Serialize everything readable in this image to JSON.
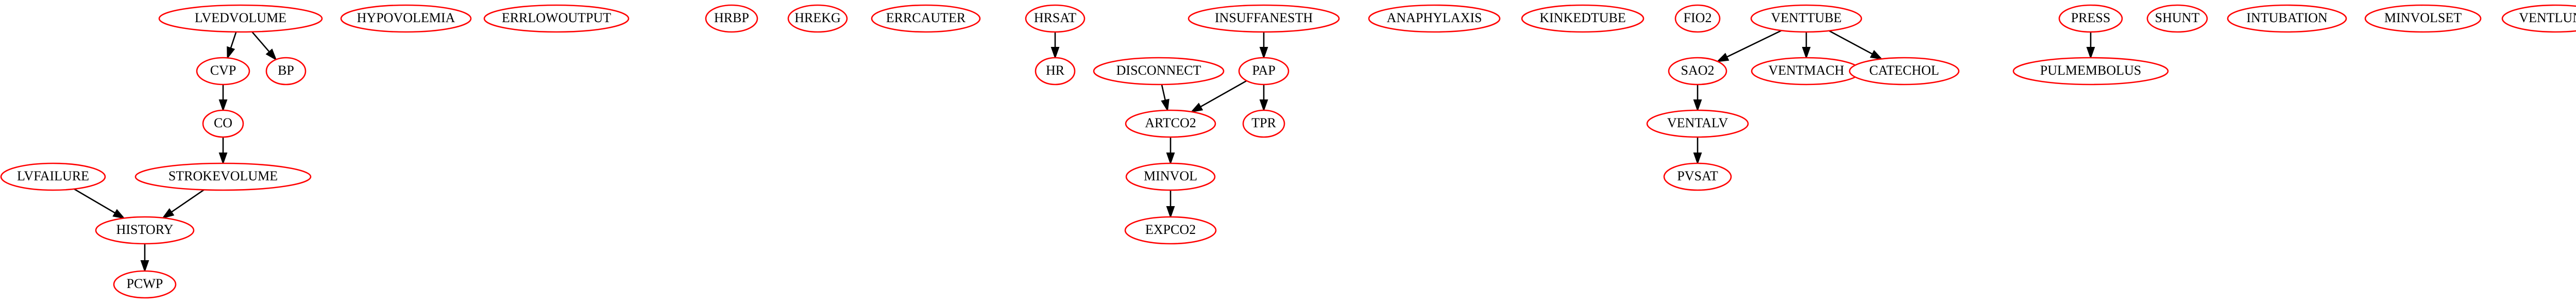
{
  "graph": {
    "node_color": "#ff0000",
    "edge_color": "#000000",
    "nodes": [
      {
        "id": "LVEDVOLUME",
        "label": "LVEDVOLUME"
      },
      {
        "id": "HYPOVOLEMIA",
        "label": "HYPOVOLEMIA"
      },
      {
        "id": "ERRLOWOUTPUT",
        "label": "ERRLOWOUTPUT"
      },
      {
        "id": "HRBP",
        "label": "HRBP"
      },
      {
        "id": "HREKG",
        "label": "HREKG"
      },
      {
        "id": "ERRCAUTER",
        "label": "ERRCAUTER"
      },
      {
        "id": "HRSAT",
        "label": "HRSAT"
      },
      {
        "id": "INSUFFANESTH",
        "label": "INSUFFANESTH"
      },
      {
        "id": "ANAPHYLAXIS",
        "label": "ANAPHYLAXIS"
      },
      {
        "id": "KINKEDTUBE",
        "label": "KINKEDTUBE"
      },
      {
        "id": "FIO2",
        "label": "FIO2"
      },
      {
        "id": "VENTTUBE",
        "label": "VENTTUBE"
      },
      {
        "id": "PRESS",
        "label": "PRESS"
      },
      {
        "id": "SHUNT",
        "label": "SHUNT"
      },
      {
        "id": "INTUBATION",
        "label": "INTUBATION"
      },
      {
        "id": "MINVOLSET",
        "label": "MINVOLSET"
      },
      {
        "id": "VENTLUNG",
        "label": "VENTLUNG"
      },
      {
        "id": "CVP",
        "label": "CVP"
      },
      {
        "id": "BP",
        "label": "BP"
      },
      {
        "id": "HR",
        "label": "HR"
      },
      {
        "id": "DISCONNECT",
        "label": "DISCONNECT"
      },
      {
        "id": "PAP",
        "label": "PAP"
      },
      {
        "id": "SAO2",
        "label": "SAO2"
      },
      {
        "id": "VENTMACH",
        "label": "VENTMACH"
      },
      {
        "id": "CATECHOL",
        "label": "CATECHOL"
      },
      {
        "id": "PULMEMBOLUS",
        "label": "PULMEMBOLUS"
      },
      {
        "id": "CO",
        "label": "CO"
      },
      {
        "id": "ARTCO2",
        "label": "ARTCO2"
      },
      {
        "id": "TPR",
        "label": "TPR"
      },
      {
        "id": "VENTALV",
        "label": "VENTALV"
      },
      {
        "id": "LVFAILURE",
        "label": "LVFAILURE"
      },
      {
        "id": "STROKEVOLUME",
        "label": "STROKEVOLUME"
      },
      {
        "id": "MINVOL",
        "label": "MINVOL"
      },
      {
        "id": "PVSAT",
        "label": "PVSAT"
      },
      {
        "id": "HISTORY",
        "label": "HISTORY"
      },
      {
        "id": "EXPCO2",
        "label": "EXPCO2"
      },
      {
        "id": "PCWP",
        "label": "PCWP"
      }
    ],
    "edges": [
      {
        "from": "LVEDVOLUME",
        "to": "CVP"
      },
      {
        "from": "LVEDVOLUME",
        "to": "BP"
      },
      {
        "from": "CVP",
        "to": "CO"
      },
      {
        "from": "CO",
        "to": "STROKEVOLUME"
      },
      {
        "from": "LVFAILURE",
        "to": "HISTORY"
      },
      {
        "from": "STROKEVOLUME",
        "to": "HISTORY"
      },
      {
        "from": "HISTORY",
        "to": "PCWP"
      },
      {
        "from": "HRSAT",
        "to": "HR"
      },
      {
        "from": "INSUFFANESTH",
        "to": "PAP"
      },
      {
        "from": "DISCONNECT",
        "to": "ARTCO2"
      },
      {
        "from": "PAP",
        "to": "ARTCO2"
      },
      {
        "from": "PAP",
        "to": "TPR"
      },
      {
        "from": "ARTCO2",
        "to": "MINVOL"
      },
      {
        "from": "MINVOL",
        "to": "EXPCO2"
      },
      {
        "from": "VENTTUBE",
        "to": "SAO2"
      },
      {
        "from": "VENTTUBE",
        "to": "VENTMACH"
      },
      {
        "from": "VENTTUBE",
        "to": "CATECHOL"
      },
      {
        "from": "SAO2",
        "to": "VENTALV"
      },
      {
        "from": "VENTALV",
        "to": "PVSAT"
      },
      {
        "from": "PRESS",
        "to": "PULMEMBOLUS"
      }
    ]
  }
}
